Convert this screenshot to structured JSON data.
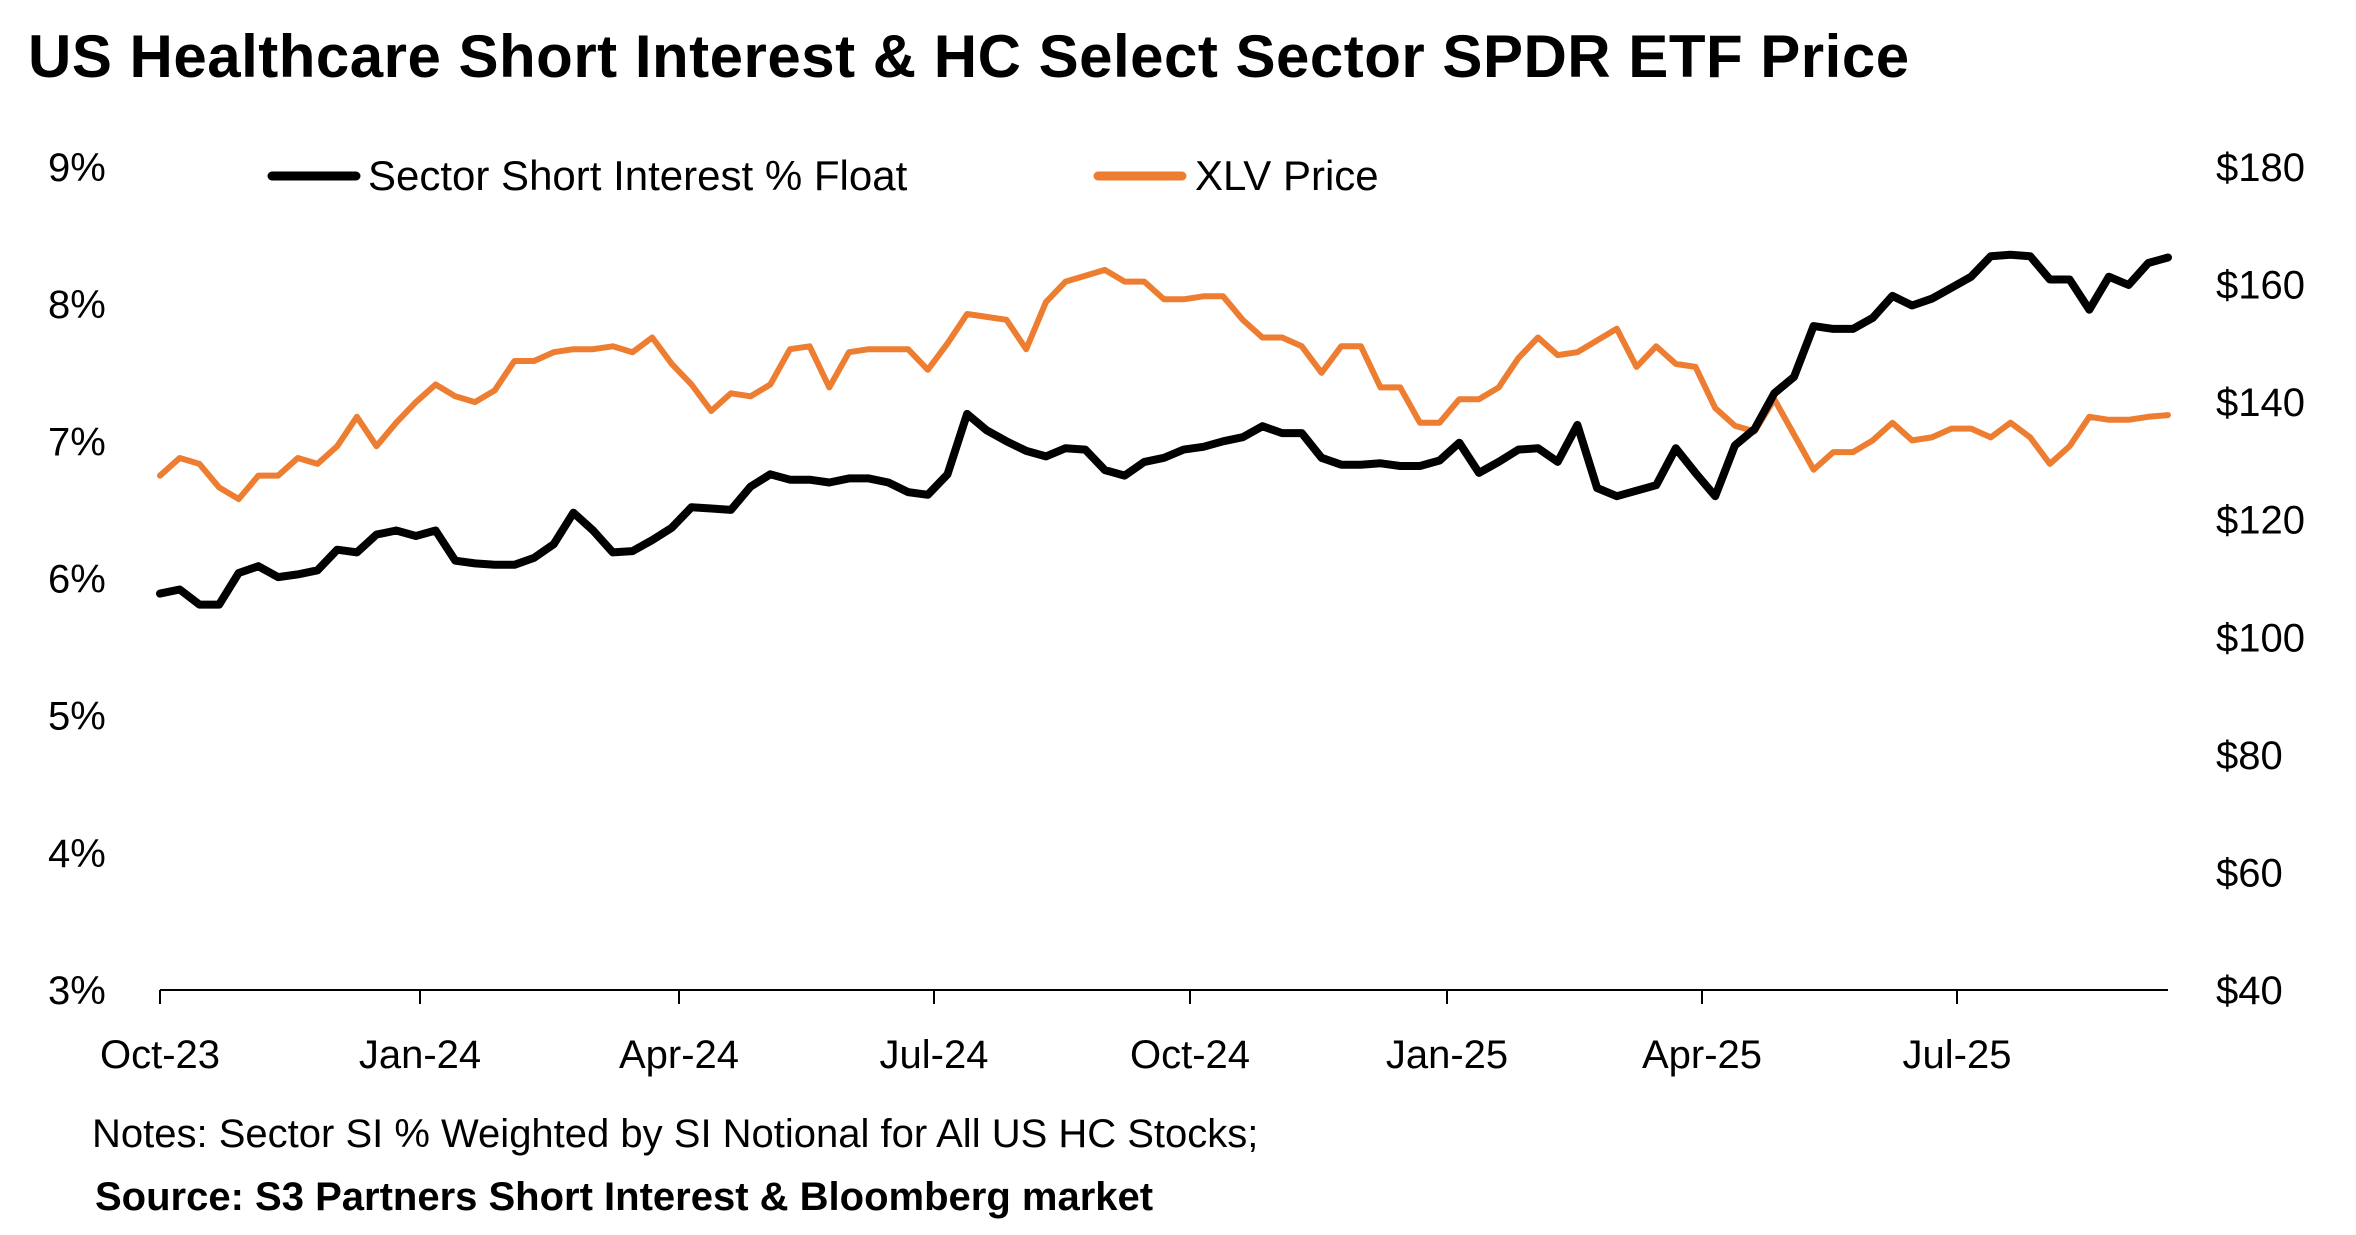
{
  "chart_data": {
    "type": "line",
    "title": "US Healthcare Short Interest & HC Select Sector SPDR ETF Price",
    "x_tick_labels": [
      "Oct-23",
      "Jan-24",
      "Apr-24",
      "Jul-24",
      "Oct-24",
      "Jan-25",
      "Apr-25",
      "Jul-25"
    ],
    "y_left": {
      "ylim": [
        3,
        9
      ],
      "ticks": [
        3,
        4,
        5,
        6,
        7,
        8,
        9
      ],
      "tick_labels": [
        "3%",
        "4%",
        "5%",
        "6%",
        "7%",
        "8%",
        "9%"
      ]
    },
    "y_right": {
      "ylim": [
        40,
        180
      ],
      "ticks": [
        40,
        60,
        80,
        100,
        120,
        140,
        160,
        180
      ],
      "tick_labels": [
        "$40",
        "$60",
        "$80",
        "$100",
        "$120",
        "$140",
        "$160",
        "$180"
      ]
    },
    "legend": [
      "Sector Short Interest % Float",
      "XLV Price"
    ],
    "series": [
      {
        "name": "Sector Short Interest % Float",
        "axis": "left",
        "color": "#000000",
        "values": [
          5.89,
          5.92,
          5.81,
          5.81,
          6.04,
          6.09,
          6.01,
          6.03,
          6.06,
          6.21,
          6.19,
          6.32,
          6.35,
          6.31,
          6.35,
          6.13,
          6.11,
          6.1,
          6.1,
          6.15,
          6.25,
          6.48,
          6.35,
          6.19,
          6.2,
          6.28,
          6.37,
          6.52,
          6.51,
          6.5,
          6.67,
          6.76,
          6.72,
          6.72,
          6.7,
          6.73,
          6.73,
          6.7,
          6.63,
          6.61,
          6.76,
          7.2,
          7.08,
          7.0,
          6.93,
          6.89,
          6.95,
          6.94,
          6.79,
          6.75,
          6.85,
          6.88,
          6.94,
          6.96,
          7.0,
          7.03,
          7.11,
          7.06,
          7.06,
          6.88,
          6.83,
          6.83,
          6.84,
          6.82,
          6.82,
          6.86,
          6.99,
          6.77,
          6.85,
          6.94,
          6.95,
          6.85,
          7.12,
          6.66,
          6.6,
          6.64,
          6.68,
          6.95,
          6.77,
          6.6,
          6.97,
          7.09,
          7.35,
          7.47,
          7.84,
          7.82,
          7.82,
          7.9,
          8.06,
          7.99,
          8.04,
          8.12,
          8.2,
          8.35,
          8.36,
          8.35,
          8.18,
          8.18,
          7.96,
          8.2,
          8.14,
          8.3,
          8.34
        ]
      },
      {
        "name": "XLV Price",
        "axis": "right",
        "color": "#ed7d31",
        "values": [
          127.5,
          130.5,
          129.5,
          125.5,
          123.5,
          127.5,
          127.5,
          130.5,
          129.5,
          132.5,
          137.5,
          132.5,
          136.5,
          140.0,
          143.0,
          141.0,
          140.0,
          142.0,
          147.0,
          147.0,
          148.5,
          149.0,
          149.0,
          149.5,
          148.5,
          151.0,
          146.5,
          143.0,
          138.5,
          141.5,
          141.0,
          143.0,
          149.0,
          149.5,
          142.5,
          148.5,
          149.0,
          149.0,
          149.0,
          145.5,
          150.0,
          155.0,
          154.5,
          154.0,
          149.0,
          157.0,
          160.5,
          161.5,
          162.5,
          160.5,
          160.5,
          157.5,
          157.5,
          158.0,
          158.0,
          154.0,
          151.0,
          151.0,
          149.5,
          145.0,
          149.5,
          149.5,
          142.5,
          142.5,
          136.5,
          136.5,
          140.5,
          140.5,
          142.5,
          147.5,
          151.0,
          148.0,
          148.5,
          150.5,
          152.5,
          146.0,
          149.5,
          146.5,
          146.0,
          139.0,
          136.0,
          135.0,
          140.5,
          134.5,
          128.5,
          131.5,
          131.5,
          133.5,
          136.5,
          133.5,
          134.0,
          135.5,
          135.5,
          134.0,
          136.5,
          134.0,
          129.5,
          132.5,
          137.5,
          137.0,
          137.0,
          137.5,
          137.8
        ]
      }
    ]
  },
  "notes": "Notes: Sector SI % Weighted by SI Notional for All US HC Stocks;",
  "source": "Source: S3 Partners Short Interest & Bloomberg market"
}
